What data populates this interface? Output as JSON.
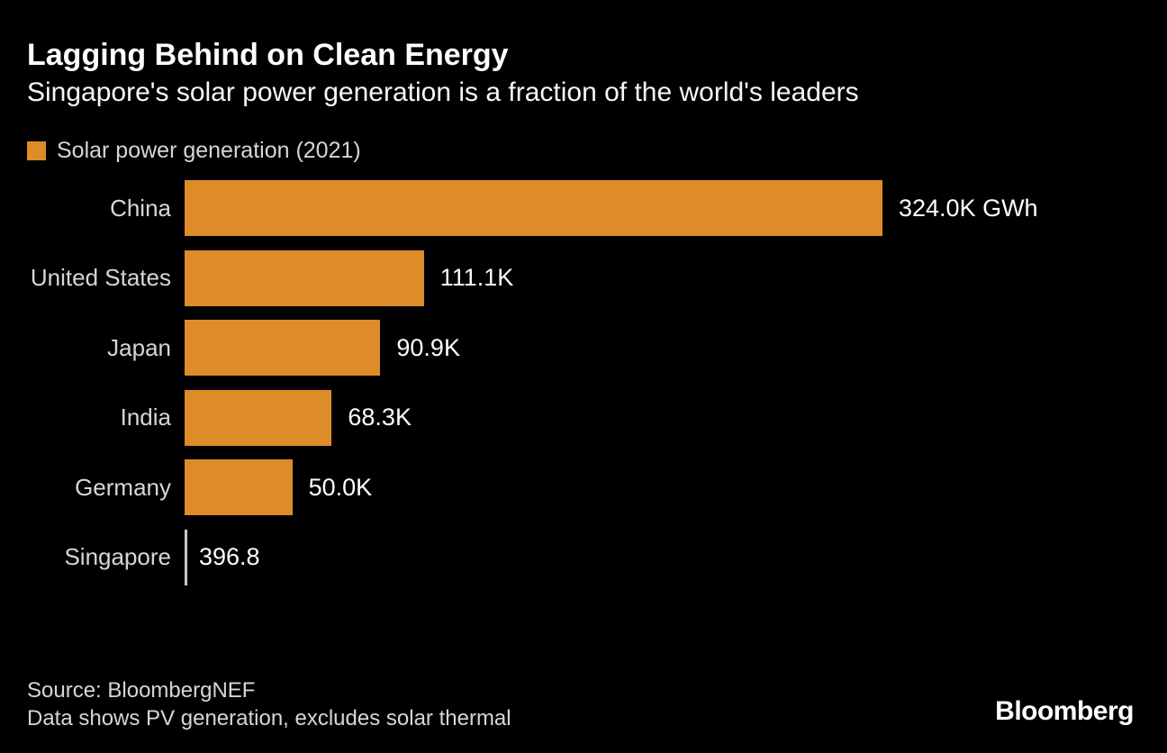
{
  "header": {
    "title": "Lagging Behind on Clean Energy",
    "subtitle": "Singapore's solar power generation is a fraction of the world's leaders"
  },
  "legend": {
    "label": "Solar power generation (2021)",
    "swatch_color": "#de8c28"
  },
  "chart_data": {
    "type": "bar",
    "orientation": "horizontal",
    "title": "Solar power generation (2021)",
    "unit": "GWh",
    "categories": [
      "China",
      "United States",
      "Japan",
      "India",
      "Germany",
      "Singapore"
    ],
    "values": [
      324000,
      111100,
      90900,
      68300,
      50000,
      396.8
    ],
    "value_labels": [
      "324.0K GWh",
      "111.1K",
      "90.9K",
      "68.3K",
      "50.0K",
      "396.8"
    ],
    "xlim": [
      0,
      324000
    ],
    "grid": false,
    "legend_position": "top-left",
    "bar_color": "#de8c28",
    "tiny_bar_tick_color": "#c9c9c9",
    "background_color": "#000000"
  },
  "footer": {
    "source": "Source: BloombergNEF",
    "note": "Data shows PV generation, excludes solar thermal",
    "brand": "Bloomberg"
  }
}
